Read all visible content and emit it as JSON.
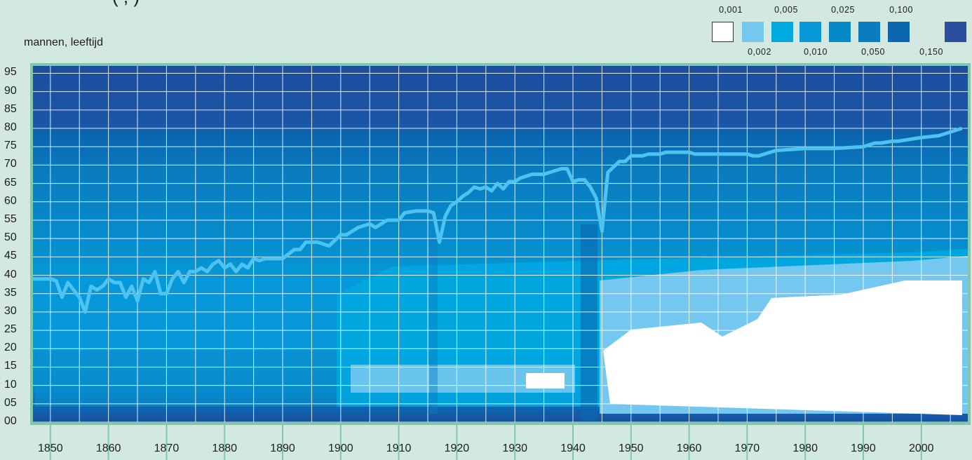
{
  "header": {
    "title_cut": "(                                   ,                           )",
    "ylabel": "mannen, leeftijd"
  },
  "legend": {
    "top_labels": [
      "0,001",
      "0,005",
      "0,025",
      "0,100"
    ],
    "bottom_labels": [
      "0,002",
      "0,010",
      "0,050",
      "0,150"
    ],
    "colors": [
      "#ffffff",
      "#74c8ef",
      "#00a9e0",
      "#0698d8",
      "#0689c9",
      "#0a7cc0",
      "#0a67b0",
      "#2a4d9e"
    ]
  },
  "chart_data": {
    "type": "heatmap",
    "xlabel": "",
    "ylabel": "mannen, leeftijd",
    "xlim": [
      1847,
      2008
    ],
    "ylim": [
      0,
      97
    ],
    "xticks": [
      "1850",
      "1860",
      "1870",
      "1880",
      "1890",
      "1900",
      "1910",
      "1920",
      "1930",
      "1940",
      "1950",
      "1960",
      "1970",
      "1980",
      "1990",
      "2000"
    ],
    "yticks": [
      "00",
      "05",
      "10",
      "15",
      "20",
      "25",
      "30",
      "35",
      "40",
      "45",
      "50",
      "55",
      "60",
      "65",
      "70",
      "75",
      "80",
      "85",
      "90",
      "95"
    ],
    "grid": true,
    "life_expectancy_line": {
      "x": [
        1847,
        1850,
        1851,
        1852,
        1853,
        1854,
        1855,
        1856,
        1857,
        1858,
        1859,
        1860,
        1861,
        1862,
        1863,
        1864,
        1865,
        1866,
        1867,
        1868,
        1869,
        1870,
        1871,
        1872,
        1873,
        1874,
        1875,
        1876,
        1877,
        1878,
        1879,
        1880,
        1881,
        1882,
        1883,
        1884,
        1885,
        1886,
        1887,
        1888,
        1890,
        1892,
        1893,
        1894,
        1895,
        1896,
        1898,
        1900,
        1901,
        1903,
        1905,
        1906,
        1908,
        1910,
        1911,
        1913,
        1915,
        1916,
        1917,
        1918,
        1919,
        1920,
        1921,
        1922,
        1923,
        1924,
        1925,
        1926,
        1927,
        1928,
        1929,
        1930,
        1931,
        1932,
        1933,
        1935,
        1937,
        1938,
        1939,
        1940,
        1941,
        1942,
        1943,
        1944,
        1945,
        1946,
        1947,
        1948,
        1949,
        1950,
        1951,
        1952,
        1953,
        1955,
        1956,
        1957,
        1960,
        1961,
        1962,
        1965,
        1970,
        1971,
        1972,
        1975,
        1980,
        1985,
        1990,
        1991,
        1992,
        1993,
        1995,
        1996,
        2000,
        2003,
        2005,
        2006,
        2007
      ],
      "y": [
        39,
        39,
        38.5,
        34,
        38,
        36,
        34,
        30,
        37,
        36,
        37,
        39,
        38,
        38,
        34,
        37,
        33,
        39,
        38,
        41,
        35,
        35,
        39,
        41,
        38,
        41,
        41,
        42,
        41,
        43,
        44,
        42,
        43,
        41,
        43,
        42,
        44.5,
        44,
        44.5,
        44.5,
        44.5,
        47,
        47,
        49,
        49,
        49,
        48,
        51,
        51,
        53,
        54,
        53,
        55,
        55,
        57,
        57.5,
        57.5,
        57,
        49,
        56,
        59,
        60,
        61.5,
        62.5,
        64,
        63.5,
        64,
        63,
        65,
        63.5,
        65.5,
        65.5,
        66.5,
        67,
        67.5,
        67.5,
        68.5,
        69,
        69,
        65.5,
        66,
        66,
        64,
        61,
        52,
        68,
        69.5,
        71,
        71,
        72.5,
        72.5,
        72.5,
        73,
        73,
        73.5,
        73.5,
        73.5,
        73,
        73,
        73,
        73,
        72.5,
        72.5,
        74,
        74.5,
        74.5,
        75,
        75.5,
        76,
        76,
        76.5,
        76.5,
        77.5,
        78,
        79,
        79.5,
        80
      ]
    }
  },
  "axis": {
    "yticks": [
      "00",
      "05",
      "10",
      "15",
      "20",
      "25",
      "30",
      "35",
      "40",
      "45",
      "50",
      "55",
      "60",
      "65",
      "70",
      "75",
      "80",
      "85",
      "90",
      "95"
    ],
    "xticks": [
      "1850",
      "1860",
      "1870",
      "1880",
      "1890",
      "1900",
      "1910",
      "1920",
      "1930",
      "1940",
      "1950",
      "1960",
      "1970",
      "1980",
      "1990",
      "2000"
    ]
  }
}
